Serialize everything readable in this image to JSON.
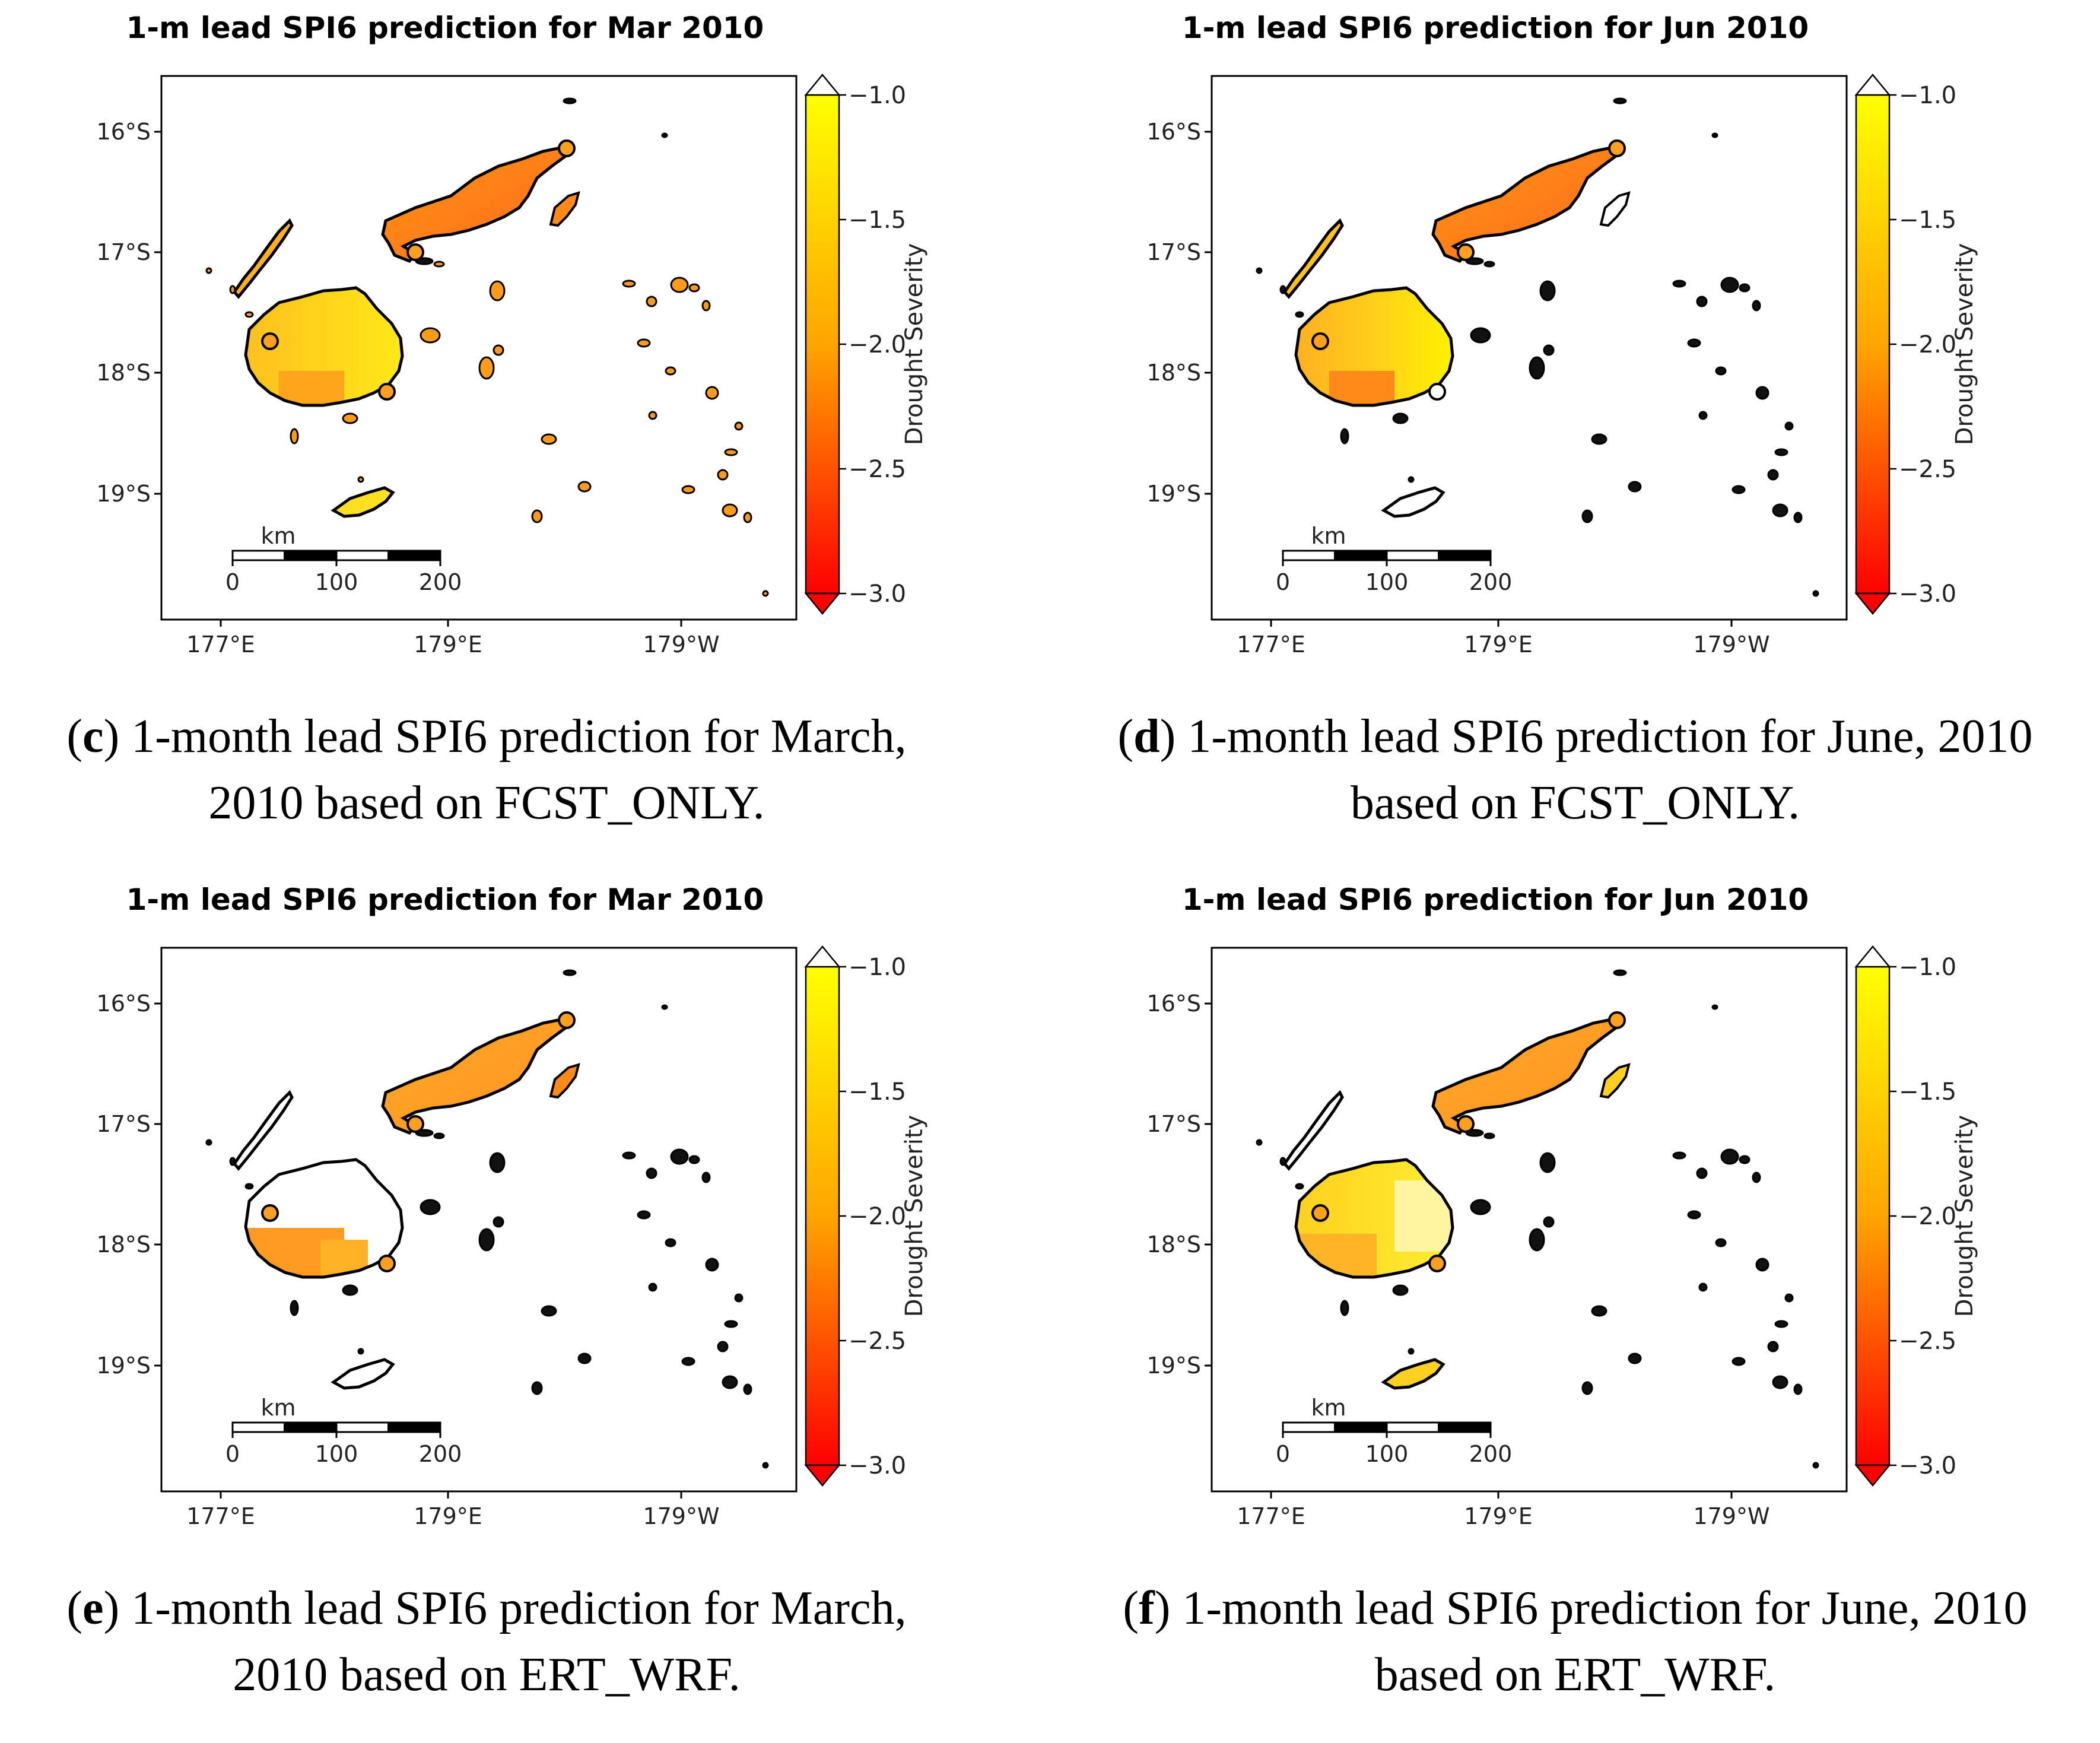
{
  "colors": {
    "yellow": "#ffff00",
    "orange": "#ffa500",
    "red": "#ff0000",
    "frame": "#000000"
  },
  "axes": {
    "lat_ticks": [
      "16°S",
      "17°S",
      "18°S",
      "19°S"
    ],
    "lon_ticks": [
      "177°E",
      "179°E",
      "179°W"
    ]
  },
  "colorbar": {
    "label": "Drought Severity",
    "ticks": [
      "−1.0",
      "−1.5",
      "−2.0",
      "−2.5",
      "−3.0"
    ],
    "range": [
      -3.0,
      -1.0
    ]
  },
  "scalebar": {
    "unit": "km",
    "labels": [
      "0",
      "100",
      "200"
    ]
  },
  "panels": [
    {
      "title": "1-m lead SPI6 prediction for Mar 2010",
      "caption_letter": "c",
      "caption_line1": ") 1-month lead SPI6 prediction for March,",
      "caption_line2": "2010 based on FCST_ONLY."
    },
    {
      "title": "1-m lead SPI6 prediction for Jun 2010",
      "caption_letter": "d",
      "caption_line1": ") 1-month lead SPI6 prediction for June, 2010",
      "caption_line2": "based on FCST_ONLY."
    },
    {
      "title": "1-m lead SPI6 prediction for Mar 2010",
      "caption_letter": "e",
      "caption_line1": ") 1-month lead SPI6 prediction for March,",
      "caption_line2": "2010 based on ERT_WRF."
    },
    {
      "title": "1-m lead SPI6 prediction for Jun 2010",
      "caption_letter": "f",
      "caption_line1": ") 1-month lead SPI6 prediction for June, 2010",
      "caption_line2": "based on ERT_WRF."
    }
  ]
}
